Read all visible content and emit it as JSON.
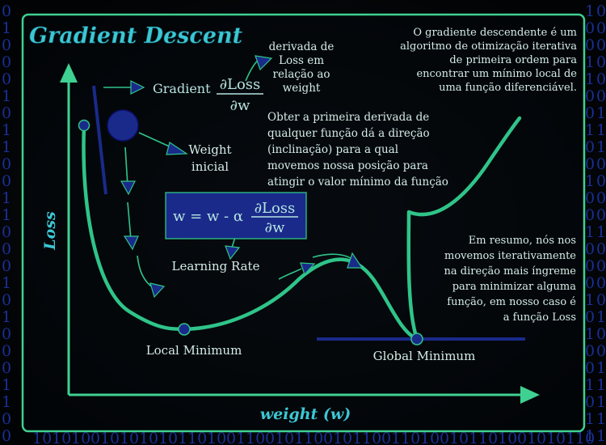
{
  "title": "Gradient Descent",
  "intro": {
    "lines": [
      "O gradiente descendente é um",
      "algoritmo de otimização iterativa",
      "de primeira ordem para",
      "encontrar um mínimo local de",
      "uma função diferenciável."
    ]
  },
  "derivative_note": {
    "lines": [
      "derivada de",
      "Loss em",
      "relação ao",
      "weight"
    ]
  },
  "gradient": {
    "label": "Gradient",
    "numerator": "∂Loss",
    "denominator": "∂w"
  },
  "direction_note": {
    "lines": [
      "Obter a primeira derivada de",
      "qualquer função dá a direção",
      "(inclinação) para a qual",
      "movemos nossa posição para",
      "atingir o valor mínimo da função"
    ]
  },
  "weight_initial": {
    "lines": [
      "Weight",
      "inicial"
    ]
  },
  "update_rule": {
    "lhs": "w = w - α",
    "numerator": "∂Loss",
    "denominator": "∂w"
  },
  "learning_rate_label": "Learning Rate",
  "summary": {
    "lines": [
      "Em resumo, nós nos",
      "movemos iterativamente",
      "na direção mais íngreme",
      "para minimizar alguma",
      "função, em nosso caso é",
      "a função Loss"
    ]
  },
  "local_minimum_label": "Local Minimum",
  "global_minimum_label": "Global Minimum",
  "axis_x_label": "weight (w)",
  "axis_y_label": "Loss",
  "colors": {
    "background": "#03060a",
    "curve": "#2fc489",
    "frame": "#3fd191",
    "accent_blue": "#1a2a8a",
    "title": "#3cc7d4",
    "text": "#d4ece7",
    "binary_digits": "#1f37b0"
  }
}
